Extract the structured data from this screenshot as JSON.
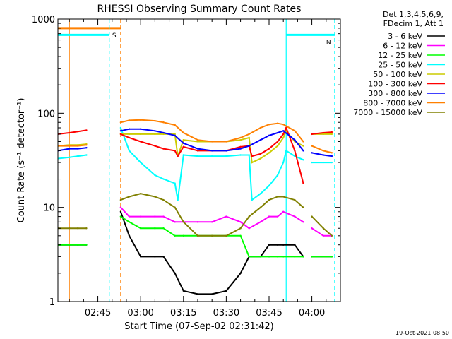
{
  "chart_data": {
    "type": "line",
    "title": "RHESSI Observing Summary Count Rates",
    "xlabel": "Start Time (07-Sep-02 02:31:42)",
    "ylabel": "Count Rate (s⁻¹ detector⁻¹)",
    "yscale": "log",
    "ylim": [
      1,
      1000
    ],
    "xlim": [
      "02:31",
      "04:10"
    ],
    "x_ticks": [
      "02:45",
      "03:00",
      "03:15",
      "03:30",
      "03:45",
      "04:00"
    ],
    "y_ticks": [
      "1",
      "10",
      "100",
      "1000"
    ],
    "legend_header": [
      "Det 1,3,4,5,6,9,",
      "FDecim 1, Att 1"
    ],
    "legend_position": "right",
    "timestamp": "19-Oct-2021 08:50",
    "flags": [
      {
        "label": "S",
        "color": "#ff8000",
        "segments": [
          [
            "02:31",
            "02:53"
          ]
        ],
        "markers_solid": [
          "02:35"
        ],
        "markers_dashed": [
          "02:53"
        ],
        "level": 800
      },
      {
        "label": "N",
        "color": "#00ffff",
        "segments": [
          [
            "02:31",
            "02:49"
          ],
          [
            "03:51",
            "04:08"
          ]
        ],
        "markers_solid": [
          "03:51"
        ],
        "markers_dashed": [
          "02:49",
          "04:08"
        ],
        "level": 680
      }
    ],
    "data_gaps": [
      [
        "02:41",
        "02:53"
      ],
      [
        "03:57",
        "03:58"
      ],
      [
        "04:07",
        "04:10"
      ]
    ],
    "series": [
      {
        "name": "3 - 6 keV",
        "color": "#000000",
        "x": [
          "02:31",
          "02:35",
          "02:38",
          "02:41",
          "02:53",
          "02:56",
          "03:00",
          "03:05",
          "03:08",
          "03:12",
          "03:15",
          "03:20",
          "03:25",
          "03:30",
          "03:35",
          "03:38",
          "03:42",
          "03:45",
          "03:48",
          "03:50",
          "03:54",
          "03:57",
          "04:00",
          "04:04",
          "04:07"
        ],
        "values": [
          4,
          4,
          4,
          4,
          9,
          5,
          3,
          3,
          3,
          2,
          1.3,
          1.2,
          1.2,
          1.3,
          2,
          3,
          3,
          4,
          4,
          4,
          4,
          3,
          3,
          3,
          3
        ]
      },
      {
        "name": "6 - 12 keV",
        "color": "#ff00ff",
        "x": [
          "02:53",
          "02:56",
          "03:00",
          "03:05",
          "03:08",
          "03:12",
          "03:15",
          "03:20",
          "03:25",
          "03:30",
          "03:35",
          "03:38",
          "03:42",
          "03:45",
          "03:48",
          "03:50",
          "03:54",
          "03:57",
          "04:00",
          "04:04",
          "04:07"
        ],
        "values": [
          10,
          8,
          8,
          8,
          8,
          7,
          7,
          7,
          7,
          8,
          7,
          6,
          7,
          8,
          8,
          9,
          8,
          7,
          6,
          5,
          5
        ]
      },
      {
        "name": "12 - 25 keV",
        "color": "#00ff00",
        "x": [
          "02:31",
          "02:35",
          "02:38",
          "02:41",
          "02:53",
          "02:56",
          "03:00",
          "03:05",
          "03:08",
          "03:12",
          "03:15",
          "03:20",
          "03:25",
          "03:30",
          "03:35",
          "03:38",
          "03:42",
          "03:45",
          "03:48",
          "03:50",
          "03:54",
          "03:57",
          "04:00",
          "04:04",
          "04:07"
        ],
        "values": [
          4,
          4,
          4,
          4,
          8,
          7,
          6,
          6,
          6,
          5,
          5,
          5,
          5,
          5,
          5,
          3,
          3,
          3,
          3,
          3,
          3,
          3,
          3,
          3,
          3
        ]
      },
      {
        "name": "25 - 50 keV",
        "color": "#00ffff",
        "x": [
          "02:31",
          "02:35",
          "02:38",
          "02:41",
          "02:53",
          "02:56",
          "03:00",
          "03:05",
          "03:08",
          "03:12",
          "03:13",
          "03:15",
          "03:20",
          "03:25",
          "03:30",
          "03:35",
          "03:38",
          "03:39",
          "03:42",
          "03:45",
          "03:48",
          "03:50",
          "03:51",
          "03:54",
          "03:57",
          "04:00",
          "04:04",
          "04:07"
        ],
        "values": [
          33,
          34,
          35,
          36,
          70,
          40,
          30,
          22,
          20,
          18,
          12,
          36,
          35,
          35,
          35,
          36,
          36,
          12,
          14,
          17,
          22,
          30,
          40,
          35,
          32,
          30,
          30,
          30
        ]
      },
      {
        "name": "50 - 100 keV",
        "color": "#cccc00",
        "x": [
          "02:31",
          "02:35",
          "02:38",
          "02:41",
          "02:53",
          "02:56",
          "03:00",
          "03:05",
          "03:08",
          "03:12",
          "03:13",
          "03:15",
          "03:20",
          "03:25",
          "03:30",
          "03:35",
          "03:38",
          "03:39",
          "03:42",
          "03:45",
          "03:48",
          "03:50",
          "03:51",
          "03:54",
          "03:57",
          "04:00",
          "04:04",
          "04:07"
        ],
        "values": [
          45,
          46,
          46,
          47,
          60,
          60,
          60,
          60,
          60,
          60,
          35,
          52,
          50,
          50,
          50,
          52,
          55,
          30,
          33,
          38,
          45,
          55,
          65,
          50,
          45,
          60,
          60,
          60
        ]
      },
      {
        "name": "100 - 300 keV",
        "color": "#ff0000",
        "x": [
          "02:31",
          "02:35",
          "02:38",
          "02:41",
          "02:53",
          "02:56",
          "03:00",
          "03:05",
          "03:08",
          "03:12",
          "03:13",
          "03:15",
          "03:20",
          "03:25",
          "03:30",
          "03:35",
          "03:38",
          "03:39",
          "03:42",
          "03:45",
          "03:48",
          "03:50",
          "03:51",
          "03:54",
          "03:57",
          "04:00",
          "04:04",
          "04:07"
        ],
        "values": [
          60,
          62,
          64,
          66,
          60,
          55,
          50,
          45,
          42,
          40,
          35,
          44,
          40,
          40,
          40,
          44,
          45,
          35,
          37,
          42,
          50,
          60,
          70,
          40,
          18,
          60,
          62,
          63
        ]
      },
      {
        "name": "300 - 800 keV",
        "color": "#0000ff",
        "x": [
          "02:31",
          "02:35",
          "02:38",
          "02:41",
          "02:53",
          "02:56",
          "03:00",
          "03:05",
          "03:08",
          "03:12",
          "03:15",
          "03:20",
          "03:25",
          "03:30",
          "03:35",
          "03:38",
          "03:42",
          "03:45",
          "03:48",
          "03:50",
          "03:54",
          "03:57",
          "04:00",
          "04:04",
          "04:07"
        ],
        "values": [
          40,
          42,
          42,
          43,
          65,
          68,
          68,
          65,
          62,
          58,
          48,
          42,
          40,
          40,
          42,
          45,
          52,
          58,
          62,
          65,
          52,
          40,
          38,
          36,
          35
        ]
      },
      {
        "name": "800 - 7000 keV",
        "color": "#ff8000",
        "x": [
          "02:31",
          "02:35",
          "02:38",
          "02:41",
          "02:53",
          "02:56",
          "03:00",
          "03:05",
          "03:08",
          "03:12",
          "03:15",
          "03:20",
          "03:25",
          "03:30",
          "03:35",
          "03:38",
          "03:42",
          "03:45",
          "03:48",
          "03:50",
          "03:54",
          "03:57",
          "04:00",
          "04:04",
          "04:07"
        ],
        "values": [
          45,
          45,
          45,
          46,
          80,
          84,
          85,
          83,
          80,
          75,
          62,
          52,
          50,
          50,
          55,
          60,
          70,
          76,
          78,
          76,
          65,
          50,
          45,
          40,
          38
        ]
      },
      {
        "name": "7000 - 15000 keV",
        "color": "#808000",
        "x": [
          "02:31",
          "02:35",
          "02:38",
          "02:41",
          "02:53",
          "02:56",
          "03:00",
          "03:05",
          "03:08",
          "03:12",
          "03:15",
          "03:20",
          "03:25",
          "03:30",
          "03:35",
          "03:38",
          "03:42",
          "03:45",
          "03:48",
          "03:50",
          "03:54",
          "03:57",
          "04:00",
          "04:04",
          "04:07"
        ],
        "values": [
          6,
          6,
          6,
          6,
          12,
          13,
          14,
          13,
          12,
          10,
          7,
          5,
          5,
          5,
          6,
          8,
          10,
          12,
          13,
          13,
          12,
          10,
          8,
          6,
          5
        ]
      }
    ]
  }
}
